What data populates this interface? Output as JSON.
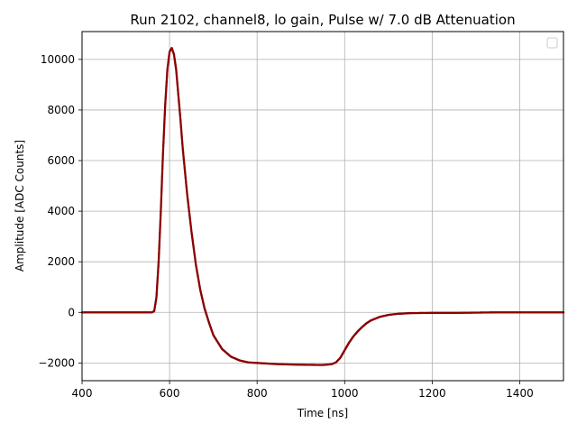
{
  "chart_data": {
    "type": "scatter",
    "title": "Run 2102, channel8, lo gain, Pulse w/ 7.0 dB Attenuation",
    "xlabel": "Time [ns]",
    "ylabel": "Amplitude [ADC Counts]",
    "xlim": [
      400,
      1500
    ],
    "ylim": [
      -2700,
      11100
    ],
    "xticks": [
      400,
      600,
      800,
      1000,
      1200,
      1400
    ],
    "yticks": [
      -2000,
      0,
      2000,
      4000,
      6000,
      8000,
      10000
    ],
    "grid": true,
    "legend": "top-right (empty)",
    "marker_color": "#8b0000",
    "series": [
      {
        "x": [
          400,
          450,
          500,
          540,
          560,
          565,
          570,
          575,
          580,
          585,
          590,
          595,
          600,
          605,
          610,
          615,
          620,
          625,
          630,
          640,
          650,
          660,
          670,
          680,
          690,
          700,
          720,
          740,
          760,
          780,
          800,
          850,
          900,
          950,
          970,
          980,
          990,
          1000,
          1010,
          1020,
          1030,
          1040,
          1050,
          1060,
          1080,
          1100,
          1120,
          1150,
          1200,
          1250,
          1300,
          1350,
          1400,
          1450,
          1500
        ],
        "y": [
          0,
          0,
          0,
          0,
          0,
          50,
          600,
          2000,
          4000,
          6300,
          8200,
          9600,
          10300,
          10450,
          10200,
          9600,
          8600,
          7600,
          6500,
          4700,
          3200,
          1900,
          900,
          150,
          -400,
          -900,
          -1450,
          -1750,
          -1900,
          -1980,
          -2000,
          -2050,
          -2070,
          -2080,
          -2050,
          -1980,
          -1800,
          -1500,
          -1200,
          -950,
          -750,
          -580,
          -430,
          -320,
          -180,
          -100,
          -60,
          -30,
          -20,
          -20,
          -10,
          0,
          0,
          0,
          0
        ]
      }
    ]
  }
}
